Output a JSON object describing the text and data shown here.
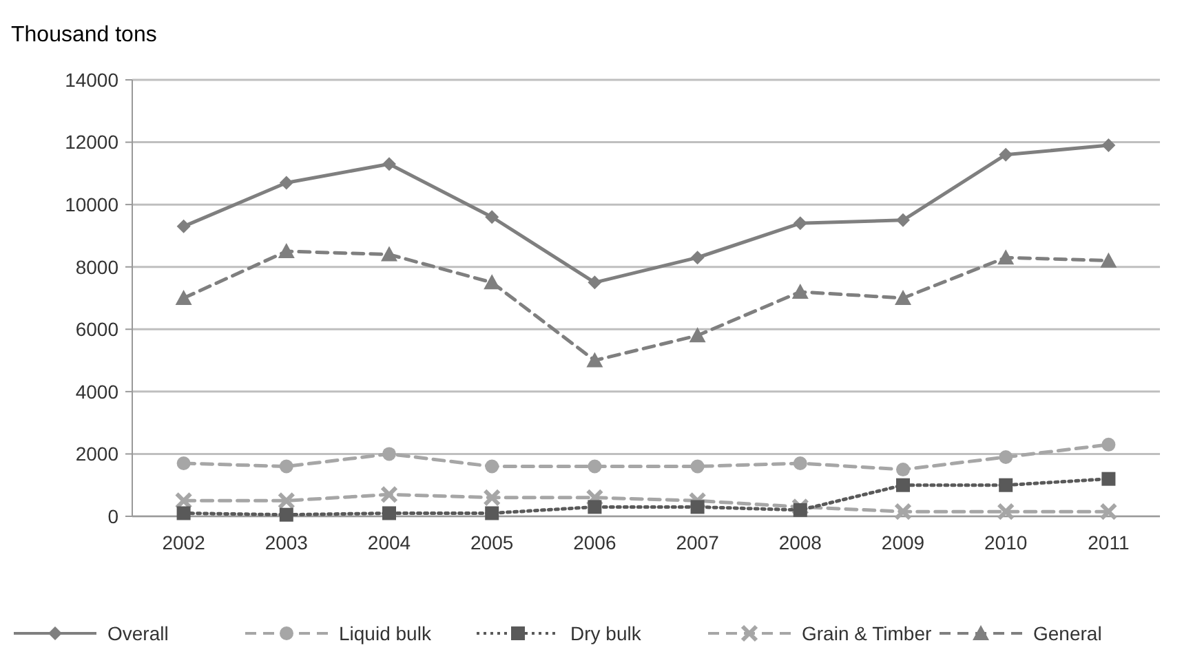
{
  "chart_data": {
    "type": "line",
    "ylabel": "Thousand tons",
    "categories": [
      "2002",
      "2003",
      "2004",
      "2005",
      "2006",
      "2007",
      "2008",
      "2009",
      "2010",
      "2011"
    ],
    "ylim": [
      0,
      14000
    ],
    "yticks": [
      0,
      2000,
      4000,
      6000,
      8000,
      10000,
      12000,
      14000
    ],
    "grid": "y",
    "legend": "bottom",
    "series": [
      {
        "name": "Overall",
        "color": "#7f7f7f",
        "marker": "diamond",
        "line_style": "solid",
        "values": [
          9300,
          10700,
          11300,
          9600,
          7500,
          8300,
          9400,
          9500,
          11600,
          11900
        ]
      },
      {
        "name": "Liquid bulk",
        "color": "#a6a6a6",
        "marker": "circle",
        "line_style": "dashed",
        "values": [
          1700,
          1600,
          2000,
          1600,
          1600,
          1600,
          1700,
          1500,
          1900,
          2300
        ]
      },
      {
        "name": "Dry bulk",
        "color": "#595959",
        "marker": "square",
        "line_style": "dotted",
        "values": [
          100,
          50,
          100,
          100,
          300,
          300,
          200,
          1000,
          1000,
          1200
        ]
      },
      {
        "name": "Grain & Timber",
        "color": "#a6a6a6",
        "marker": "cross",
        "line_style": "dashed",
        "values": [
          500,
          500,
          700,
          600,
          600,
          500,
          300,
          150,
          150,
          150
        ]
      },
      {
        "name": "General",
        "color": "#7f7f7f",
        "marker": "triangle",
        "line_style": "dashed",
        "values": [
          7000,
          8500,
          8400,
          7500,
          5000,
          5800,
          7200,
          7000,
          8300,
          8200
        ]
      }
    ]
  }
}
